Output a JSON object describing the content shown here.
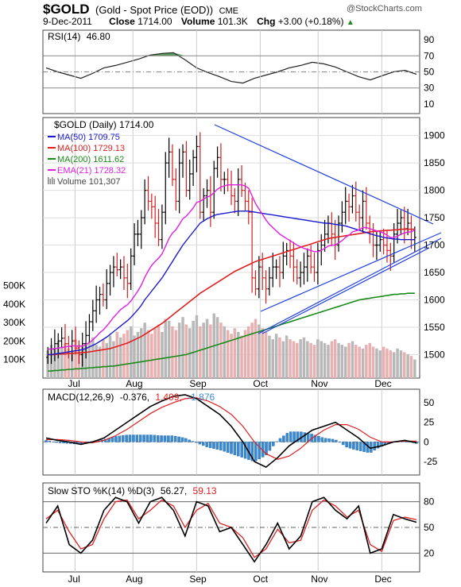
{
  "header": {
    "symbol": "$GOLD",
    "name": "(Gold - Spot Price (EOD))",
    "exchange": "CME",
    "date": "9-Dec-2011",
    "close_label": "Close",
    "close_value": "1714.00",
    "volume_label": "Volume",
    "volume_value": "101.3K",
    "chg_label": "Chg",
    "chg_value": "+3.00 (+0.18%)",
    "watermark": "@StockCharts.com"
  },
  "colors": {
    "ma50": "#1a1acd",
    "ma100": "#e02020",
    "ma200": "#1a8a1a",
    "ema21": "#e020e0",
    "up": "#000000",
    "down": "#d02020",
    "volume_up": "#b8b8b8",
    "volume_down": "#e8b0b0",
    "rsi_fill": "#5a9a5a",
    "macd_hist": "#3a8ad0",
    "trendline": "#2040e0"
  },
  "chart_data": [
    {
      "type": "line",
      "panel": "rsi",
      "title": "RSI(14) 46.80",
      "legend": [
        "RSI(14)",
        "46.80"
      ],
      "ylim": [
        0,
        100
      ],
      "y_ticks": [
        "90",
        "70",
        "50",
        "30",
        "10"
      ],
      "levels": [
        70,
        30
      ],
      "x": [
        0,
        4,
        8,
        12,
        16,
        20,
        24,
        28,
        32,
        36,
        40,
        44,
        48,
        52,
        56,
        60,
        64,
        68,
        72,
        76,
        80,
        84,
        88,
        92,
        96,
        100,
        104,
        108,
        112,
        116,
        120,
        124,
        128
      ],
      "values": [
        55,
        50,
        46,
        42,
        48,
        55,
        58,
        62,
        66,
        71,
        73,
        74,
        65,
        55,
        49,
        44,
        38,
        36,
        42,
        46,
        50,
        55,
        58,
        62,
        60,
        56,
        50,
        44,
        40,
        45,
        50,
        52,
        47
      ]
    },
    {
      "type": "candlestick",
      "panel": "price",
      "title": "$GOLD (Daily) 1714.00",
      "ylim": [
        1460,
        1930
      ],
      "y_ticks": [
        "1900",
        "1850",
        "1800",
        "1750",
        "1700",
        "1650",
        "1600",
        "1550",
        "1500"
      ],
      "x_ticks": [
        "Jul",
        "Aug",
        "Sep",
        "Oct",
        "Nov",
        "Dec"
      ],
      "x_tick_positions": [
        10,
        30,
        52,
        74,
        94,
        116
      ],
      "x_range": [
        0,
        128
      ],
      "legend": [
        {
          "name": "MA(50)",
          "value": "1709.75"
        },
        {
          "name": "MA(100)",
          "value": "1729.13"
        },
        {
          "name": "MA(200)",
          "value": "1611.62"
        },
        {
          "name": "EMA(21)",
          "value": "1728.32"
        },
        {
          "name": "Volume",
          "value": "101,307"
        }
      ],
      "close": [
        1500,
        1510,
        1520,
        1525,
        1530,
        1520,
        1515,
        1525,
        1512,
        1500,
        1520,
        1535,
        1560,
        1580,
        1600,
        1610,
        1600,
        1630,
        1650,
        1660,
        1655,
        1660,
        1640,
        1630,
        1680,
        1720,
        1720,
        1750,
        1800,
        1780,
        1770,
        1740,
        1710,
        1760,
        1850,
        1870,
        1820,
        1780,
        1850,
        1870,
        1800,
        1830,
        1860,
        1880,
        1760,
        1790,
        1800,
        1760,
        1840,
        1860,
        1820,
        1820,
        1810,
        1790,
        1780,
        1820,
        1800,
        1780,
        1760,
        1640,
        1620,
        1660,
        1640,
        1620,
        1640,
        1660,
        1660,
        1650,
        1680,
        1690,
        1680,
        1660,
        1640,
        1650,
        1660,
        1680,
        1660,
        1650,
        1690,
        1700,
        1720,
        1740,
        1720,
        1700,
        1740,
        1760,
        1780,
        1770,
        1790,
        1760,
        1750,
        1780,
        1740,
        1720,
        1700,
        1700,
        1710,
        1700,
        1690,
        1680,
        1720,
        1740,
        1750,
        1730,
        1740,
        1710,
        1714
      ],
      "ma50": [
        1500,
        1500,
        1501,
        1502,
        1503,
        1504,
        1505,
        1506,
        1507,
        1508,
        1509,
        1511,
        1514,
        1517,
        1520,
        1524,
        1528,
        1532,
        1537,
        1542,
        1547,
        1552,
        1557,
        1562,
        1568,
        1575,
        1582,
        1590,
        1600,
        1608,
        1616,
        1624,
        1632,
        1640,
        1650,
        1660,
        1670,
        1680,
        1690,
        1700,
        1708,
        1716,
        1724,
        1732,
        1740,
        1744,
        1748,
        1751,
        1754,
        1756,
        1757,
        1758,
        1759,
        1760,
        1761,
        1762,
        1762,
        1762,
        1762,
        1761,
        1760,
        1759,
        1758,
        1757,
        1756,
        1755,
        1754,
        1753,
        1752,
        1751,
        1750,
        1749,
        1748,
        1747,
        1746,
        1745,
        1744,
        1743,
        1742,
        1741,
        1740,
        1740,
        1739,
        1738,
        1737,
        1736,
        1735,
        1733,
        1731,
        1729,
        1727,
        1725,
        1723,
        1721,
        1719,
        1717,
        1716,
        1714,
        1713,
        1712,
        1711,
        1711,
        1710,
        1710,
        1710,
        1710,
        1710
      ],
      "ma100": [
        1500,
        1500,
        1500,
        1501,
        1501,
        1501,
        1502,
        1502,
        1503,
        1503,
        1504,
        1504,
        1505,
        1506,
        1507,
        1508,
        1509,
        1510,
        1511,
        1513,
        1515,
        1517,
        1519,
        1521,
        1524,
        1527,
        1530,
        1533,
        1537,
        1541,
        1545,
        1549,
        1553,
        1557,
        1562,
        1567,
        1572,
        1577,
        1582,
        1587,
        1592,
        1597,
        1602,
        1607,
        1612,
        1616,
        1620,
        1624,
        1628,
        1632,
        1636,
        1640,
        1644,
        1648,
        1652,
        1655,
        1658,
        1661,
        1664,
        1667,
        1670,
        1672,
        1674,
        1676,
        1678,
        1680,
        1682,
        1684,
        1686,
        1688,
        1690,
        1692,
        1694,
        1696,
        1698,
        1700,
        1702,
        1704,
        1706,
        1708,
        1710,
        1712,
        1713,
        1714,
        1715,
        1716,
        1717,
        1718,
        1719,
        1720,
        1721,
        1722,
        1723,
        1724,
        1725,
        1725,
        1726,
        1726,
        1727,
        1727,
        1728,
        1728,
        1729,
        1729,
        1729,
        1729,
        1729
      ],
      "ma200": [
        1470,
        1470,
        1471,
        1471,
        1472,
        1472,
        1473,
        1473,
        1474,
        1474,
        1475,
        1475,
        1476,
        1476,
        1477,
        1477,
        1478,
        1478,
        1479,
        1479,
        1480,
        1481,
        1482,
        1483,
        1484,
        1485,
        1486,
        1487,
        1488,
        1489,
        1490,
        1491,
        1492,
        1493,
        1494,
        1495,
        1496,
        1497,
        1498,
        1499,
        1500,
        1502,
        1504,
        1506,
        1508,
        1510,
        1512,
        1514,
        1516,
        1518,
        1520,
        1522,
        1524,
        1526,
        1528,
        1530,
        1532,
        1534,
        1536,
        1538,
        1540,
        1542,
        1544,
        1546,
        1548,
        1550,
        1552,
        1554,
        1556,
        1558,
        1560,
        1562,
        1564,
        1566,
        1568,
        1570,
        1572,
        1574,
        1576,
        1578,
        1580,
        1582,
        1584,
        1586,
        1588,
        1590,
        1592,
        1594,
        1596,
        1598,
        1600,
        1601,
        1602,
        1603,
        1604,
        1605,
        1606,
        1607,
        1608,
        1609,
        1610,
        1610,
        1611,
        1611,
        1612,
        1612,
        1612
      ],
      "ema21": [
        1510,
        1510,
        1511,
        1512,
        1513,
        1514,
        1515,
        1516,
        1516,
        1515,
        1516,
        1518,
        1522,
        1527,
        1533,
        1540,
        1545,
        1552,
        1560,
        1568,
        1575,
        1582,
        1587,
        1591,
        1598,
        1607,
        1616,
        1627,
        1641,
        1653,
        1663,
        1670,
        1676,
        1684,
        1698,
        1712,
        1722,
        1728,
        1738,
        1748,
        1753,
        1760,
        1768,
        1778,
        1780,
        1784,
        1788,
        1790,
        1796,
        1802,
        1806,
        1808,
        1810,
        1810,
        1810,
        1810,
        1810,
        1808,
        1804,
        1790,
        1776,
        1766,
        1756,
        1746,
        1738,
        1732,
        1726,
        1720,
        1716,
        1712,
        1708,
        1704,
        1700,
        1697,
        1694,
        1692,
        1690,
        1688,
        1688,
        1690,
        1694,
        1698,
        1700,
        1700,
        1704,
        1708,
        1714,
        1718,
        1724,
        1726,
        1728,
        1732,
        1732,
        1730,
        1728,
        1726,
        1724,
        1722,
        1718,
        1714,
        1714,
        1716,
        1720,
        1722,
        1724,
        1724,
        1728
      ],
      "volume": [
        150,
        180,
        160,
        200,
        170,
        190,
        160,
        150,
        210,
        180,
        170,
        190,
        200,
        220,
        180,
        170,
        210,
        190,
        230,
        200,
        250,
        220,
        240,
        260,
        280,
        230,
        250,
        270,
        300,
        260,
        240,
        270,
        290,
        250,
        320,
        310,
        280,
        260,
        300,
        330,
        290,
        270,
        310,
        340,
        280,
        300,
        320,
        290,
        350,
        330,
        300,
        280,
        260,
        240,
        270,
        250,
        230,
        260,
        280,
        300,
        320,
        290,
        270,
        250,
        230,
        210,
        240,
        220,
        200,
        230,
        210,
        200,
        190,
        210,
        220,
        200,
        190,
        180,
        210,
        200,
        190,
        180,
        200,
        210,
        190,
        180,
        170,
        190,
        200,
        180,
        170,
        160,
        180,
        190,
        170,
        160,
        150,
        170,
        160,
        150,
        140,
        160,
        150,
        140,
        130,
        120,
        101
      ],
      "volume_axis_labels": [
        "500K",
        "400K",
        "300K",
        "200K",
        "100K"
      ],
      "volume_axis_values": [
        500,
        400,
        300,
        200,
        100
      ]
    },
    {
      "type": "line",
      "panel": "macd",
      "title": "MACD(12,26,9) -0.376, 1.499, -1.876",
      "legend": [
        "MACD(12,26,9)",
        "-0.376,",
        "1.499,",
        "-1.876"
      ],
      "ylim": [
        -40,
        65
      ],
      "y_ticks": [
        "50",
        "25",
        "0",
        "-25"
      ],
      "y_tick_values": [
        50,
        25,
        0,
        -25
      ],
      "x": [
        0,
        4,
        8,
        12,
        16,
        20,
        24,
        28,
        32,
        36,
        40,
        44,
        48,
        52,
        56,
        60,
        64,
        68,
        72,
        76,
        80,
        84,
        88,
        92,
        96,
        100,
        104,
        108,
        112,
        116,
        120,
        124,
        128
      ],
      "macd": [
        5,
        2,
        0,
        -3,
        0,
        5,
        15,
        25,
        35,
        45,
        52,
        58,
        60,
        55,
        45,
        35,
        20,
        0,
        -25,
        -32,
        -20,
        -5,
        5,
        15,
        20,
        25,
        15,
        5,
        -8,
        -5,
        0,
        2,
        -1
      ],
      "signal": [
        3,
        3,
        2,
        0,
        -1,
        2,
        8,
        16,
        26,
        36,
        44,
        50,
        55,
        56,
        52,
        45,
        35,
        20,
        0,
        -15,
        -22,
        -18,
        -8,
        5,
        15,
        22,
        22,
        16,
        6,
        0,
        0,
        1,
        1
      ],
      "histogram": [
        2,
        -1,
        -2,
        -3,
        1,
        3,
        7,
        9,
        9,
        9,
        8,
        8,
        5,
        -1,
        -7,
        -10,
        -15,
        -20,
        -25,
        -17,
        2,
        13,
        13,
        10,
        5,
        3,
        -7,
        -11,
        -14,
        -5,
        0,
        1,
        -2
      ]
    },
    {
      "type": "line",
      "panel": "stochastic",
      "title": "Slow STO %K(14) %D(3) 56.27, 59.13",
      "legend": [
        "Slow STO %K(14) %D(3)",
        "56.27,",
        "59.13"
      ],
      "ylim": [
        0,
        100
      ],
      "y_ticks": [
        "80",
        "50",
        "20"
      ],
      "y_tick_values": [
        80,
        50,
        20
      ],
      "x": [
        0,
        4,
        8,
        12,
        16,
        20,
        24,
        28,
        32,
        36,
        40,
        44,
        48,
        52,
        56,
        60,
        64,
        68,
        72,
        76,
        80,
        84,
        88,
        92,
        96,
        100,
        104,
        108,
        112,
        116,
        120,
        124,
        128
      ],
      "k": [
        55,
        75,
        30,
        20,
        35,
        70,
        85,
        80,
        55,
        80,
        85,
        70,
        40,
        80,
        75,
        45,
        50,
        30,
        10,
        30,
        55,
        25,
        40,
        80,
        85,
        70,
        60,
        75,
        20,
        25,
        65,
        60,
        56
      ],
      "d": [
        60,
        70,
        45,
        25,
        30,
        60,
        80,
        82,
        60,
        70,
        82,
        75,
        50,
        70,
        78,
        55,
        50,
        38,
        15,
        25,
        48,
        32,
        35,
        70,
        82,
        75,
        62,
        70,
        30,
        22,
        58,
        62,
        59
      ]
    }
  ]
}
